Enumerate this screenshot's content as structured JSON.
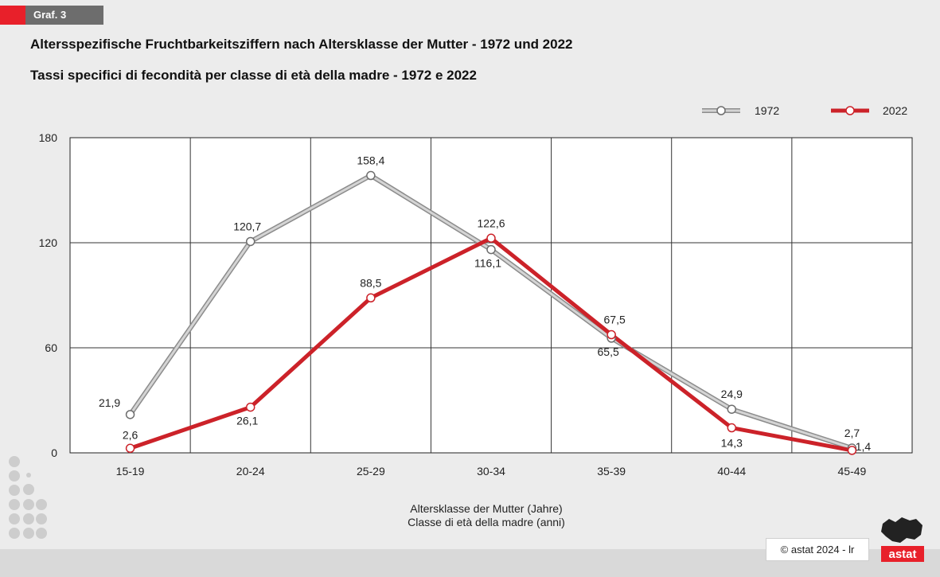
{
  "badge": {
    "label": "Graf. 3"
  },
  "titles": {
    "de": "Altersspezifische Fruchtbarkeitsziffern nach Altersklasse der Mutter - 1972 und 2022",
    "it": "Tassi specifici di fecondità per classe di età della madre - 1972 e 2022"
  },
  "footer": {
    "copyright": "© astat 2024 - lr",
    "logo_text": "astat"
  },
  "colors": {
    "series_1972": "#b9b9b9",
    "series_2022": "#cc2229",
    "accent": "#e8202a"
  },
  "chart_data": {
    "type": "line",
    "categories": [
      "15-19",
      "20-24",
      "25-29",
      "30-34",
      "35-39",
      "40-44",
      "45-49"
    ],
    "series": [
      {
        "name": "1972",
        "values": [
          21.9,
          120.7,
          158.4,
          116.1,
          65.5,
          24.9,
          2.7
        ],
        "labels": [
          "21,9",
          "120,7",
          "158,4",
          "116,1",
          "65,5",
          "24,9",
          "2,7"
        ]
      },
      {
        "name": "2022",
        "values": [
          2.6,
          26.1,
          88.5,
          122.6,
          67.5,
          14.3,
          1.4
        ],
        "labels": [
          "2,6",
          "26,1",
          "88,5",
          "122,6",
          "67,5",
          "14,3",
          "1,4"
        ]
      }
    ],
    "ylim": [
      0,
      180
    ],
    "yticks": [
      0,
      60,
      120,
      180
    ],
    "xlabel": [
      "Altersklasse der Mutter (Jahre)",
      "Classe di età della madre (anni)"
    ],
    "ylabel": "",
    "grid": true,
    "legend_position": "top-right"
  }
}
